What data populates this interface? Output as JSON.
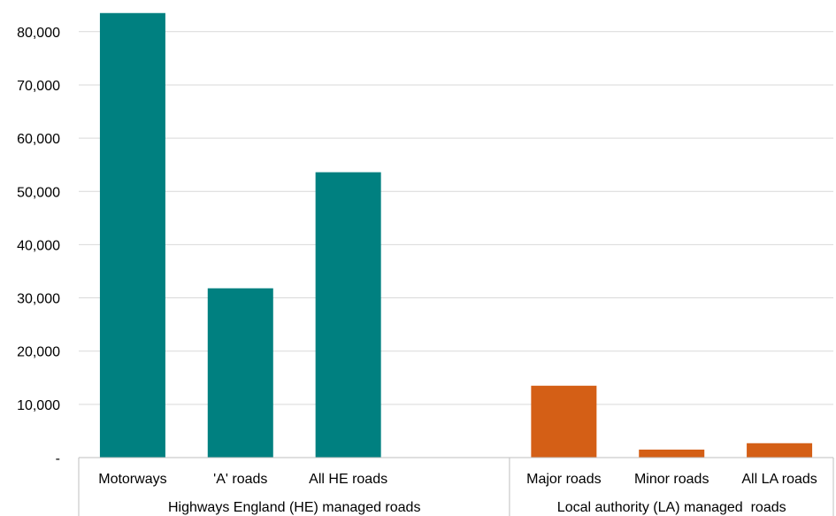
{
  "chart_data": {
    "type": "bar",
    "title": "",
    "xlabel": "",
    "ylabel": "",
    "ylim": [
      0,
      85000
    ],
    "yticks": [
      0,
      10000,
      20000,
      30000,
      40000,
      50000,
      60000,
      70000,
      80000
    ],
    "ytick_labels": [
      "-",
      "10,000",
      "20,000",
      "30,000",
      "40,000",
      "50,000",
      "60,000",
      "70,000",
      "80,000"
    ],
    "grid": true,
    "legend": "none",
    "categories": [
      "Motorways",
      "'A' roads",
      "All HE roads",
      "",
      "Major roads",
      "Minor roads",
      "All LA roads"
    ],
    "values": [
      83500,
      31800,
      53600,
      null,
      13500,
      1500,
      2700
    ],
    "bar_colors": [
      "#008080",
      "#008080",
      "#008080",
      null,
      "#d45f16",
      "#d45f16",
      "#d45f16"
    ],
    "groups": [
      {
        "label": "Highways England (HE) managed roads",
        "span": [
          0,
          3
        ]
      },
      {
        "label": "Local authority (LA) managed  roads",
        "span": [
          4,
          6
        ]
      }
    ]
  }
}
